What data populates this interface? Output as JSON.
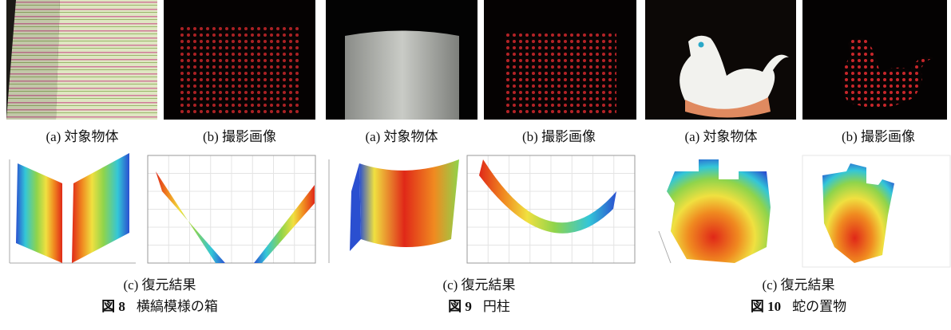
{
  "figures": [
    {
      "subcaptions": [
        "(a) 対象物体",
        "(b) 撮影画像",
        "(c) 復元結果"
      ],
      "number": "図 8",
      "title": "横縞模様の箱"
    },
    {
      "subcaptions": [
        "(a) 対象物体",
        "(b) 撮影画像",
        "(c) 復元結果"
      ],
      "number": "図 9",
      "title": "円柱"
    },
    {
      "subcaptions": [
        "(a) 対象物体",
        "(b) 撮影画像",
        "(c) 復元結果"
      ],
      "number": "図 10",
      "title": "蛇の置物"
    }
  ]
}
